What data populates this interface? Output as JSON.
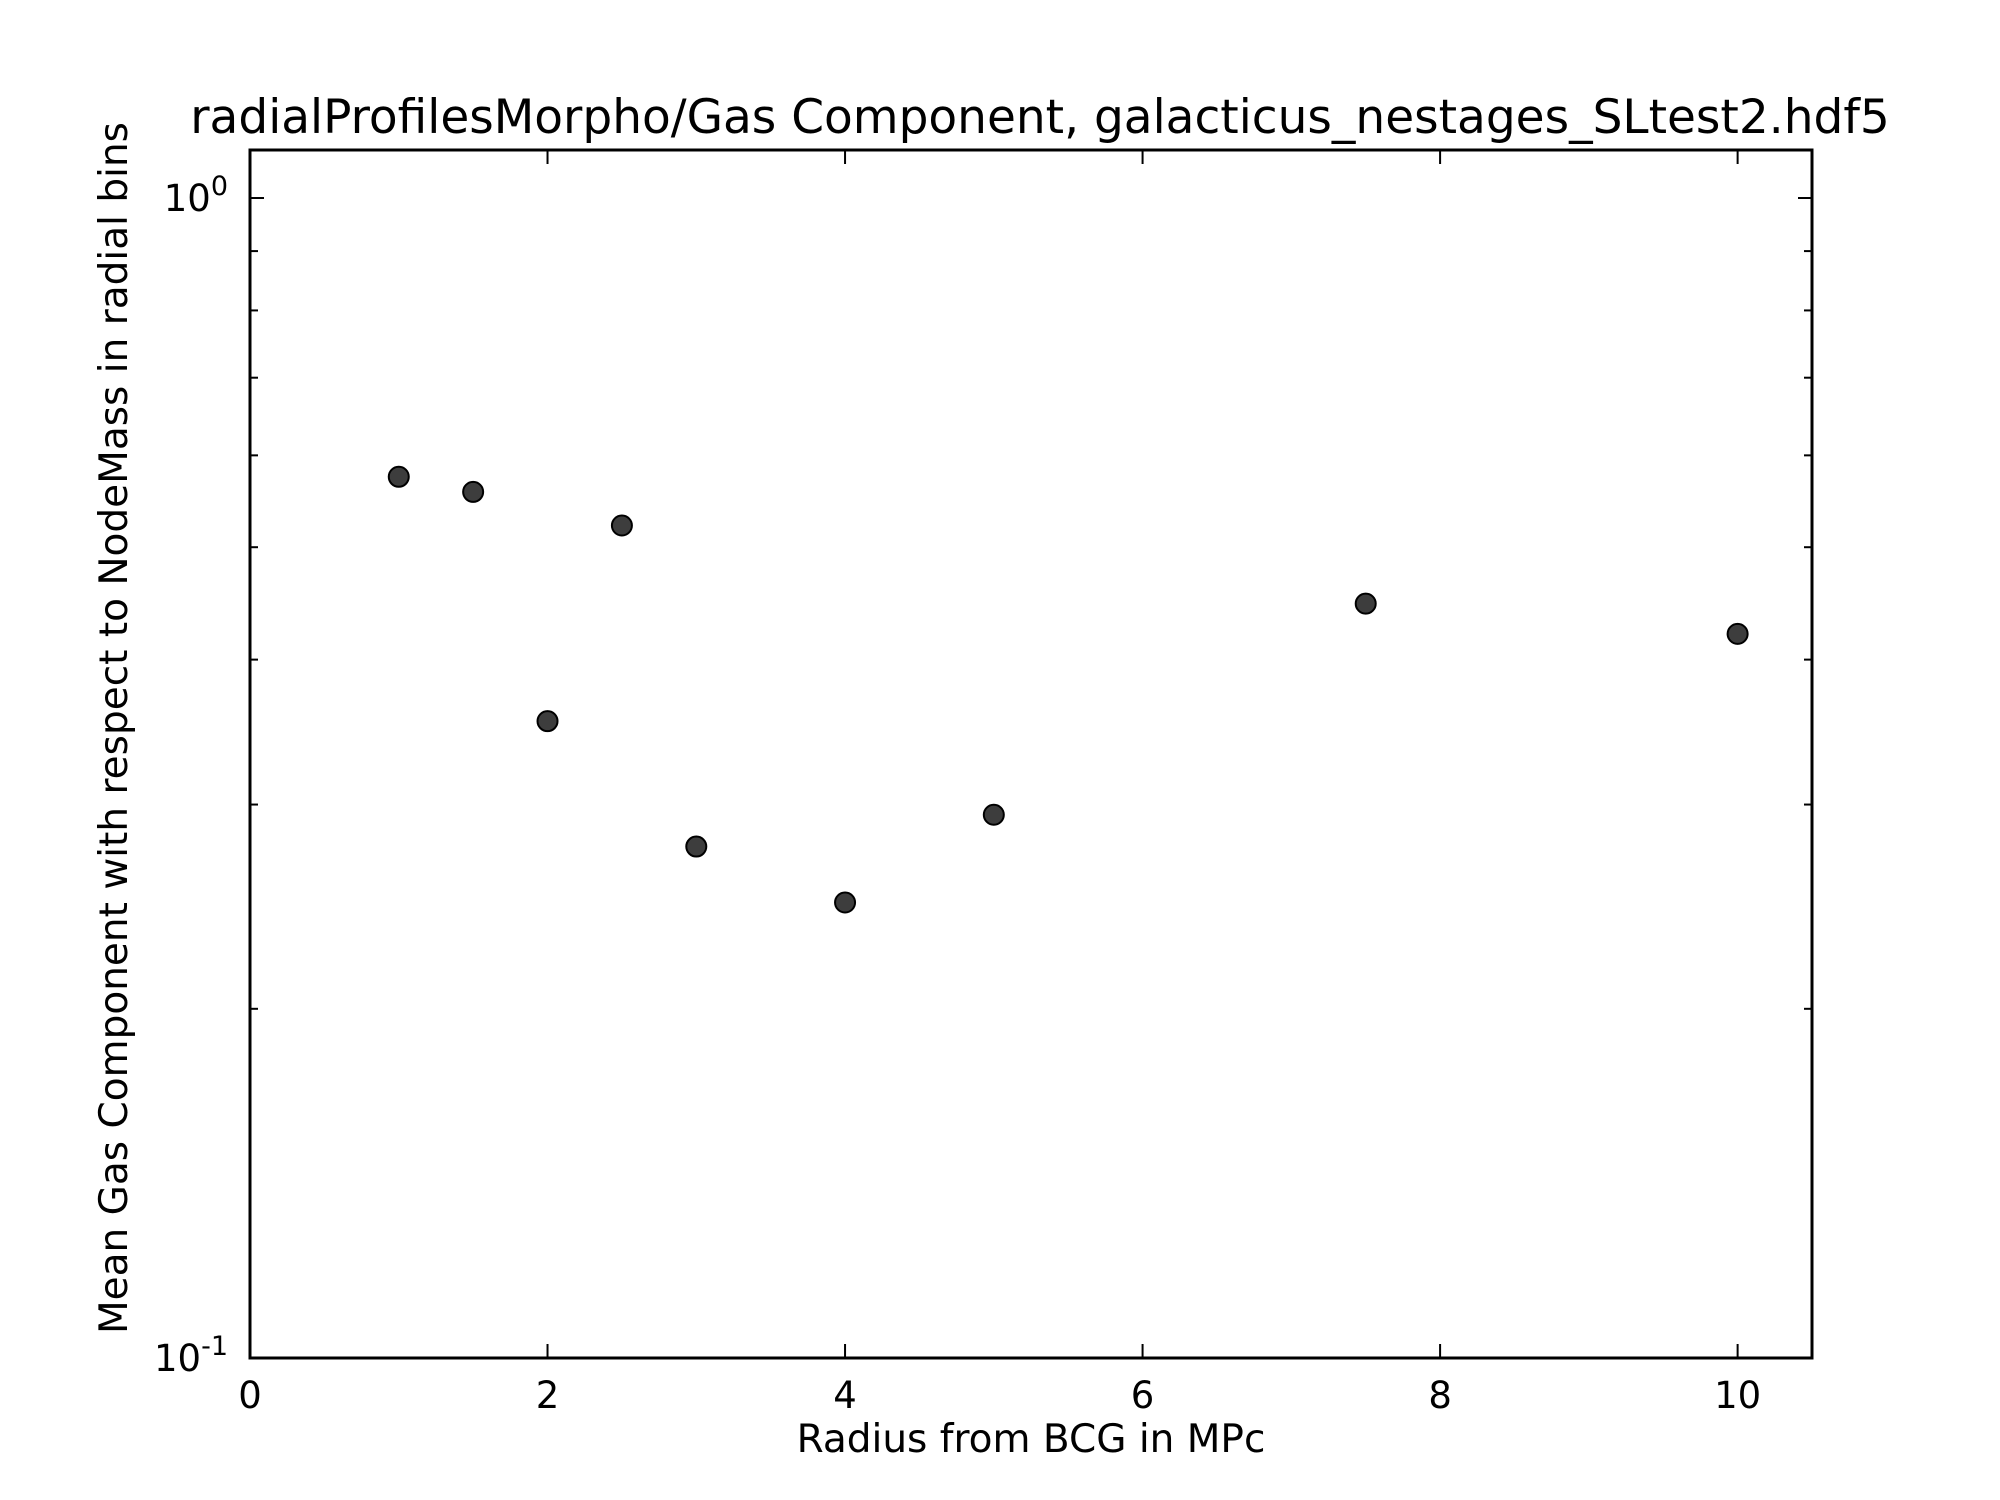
{
  "chart_data": {
    "type": "scatter",
    "title": "radialProfilesMorpho/Gas Component, galacticus_nestages_SLtest2.hdf5",
    "xlabel": "Radius from BCG in MPc",
    "ylabel": "Mean Gas Component with respect to NodeMass in radial bins",
    "xlim": [
      0,
      10.5
    ],
    "ylim": [
      0.1,
      1.1
    ],
    "yscale": "log",
    "grid": false,
    "x_ticks": [
      0,
      2,
      4,
      6,
      8,
      10
    ],
    "x_tick_labels": [
      "0",
      "2",
      "4",
      "6",
      "8",
      "10"
    ],
    "y_ticks": [
      0.1,
      1.0
    ],
    "y_tick_labels": [
      {
        "base": "10",
        "exp": "-1"
      },
      {
        "base": "10",
        "exp": "0"
      }
    ],
    "marker_color": "#3d3d3d",
    "series": [
      {
        "x": [
          1.0,
          1.5,
          2.0,
          2.5,
          3.0,
          4.0,
          5.0,
          7.5,
          10.0
        ],
        "y": [
          0.575,
          0.558,
          0.354,
          0.522,
          0.276,
          0.247,
          0.294,
          0.447,
          0.421
        ]
      }
    ]
  }
}
